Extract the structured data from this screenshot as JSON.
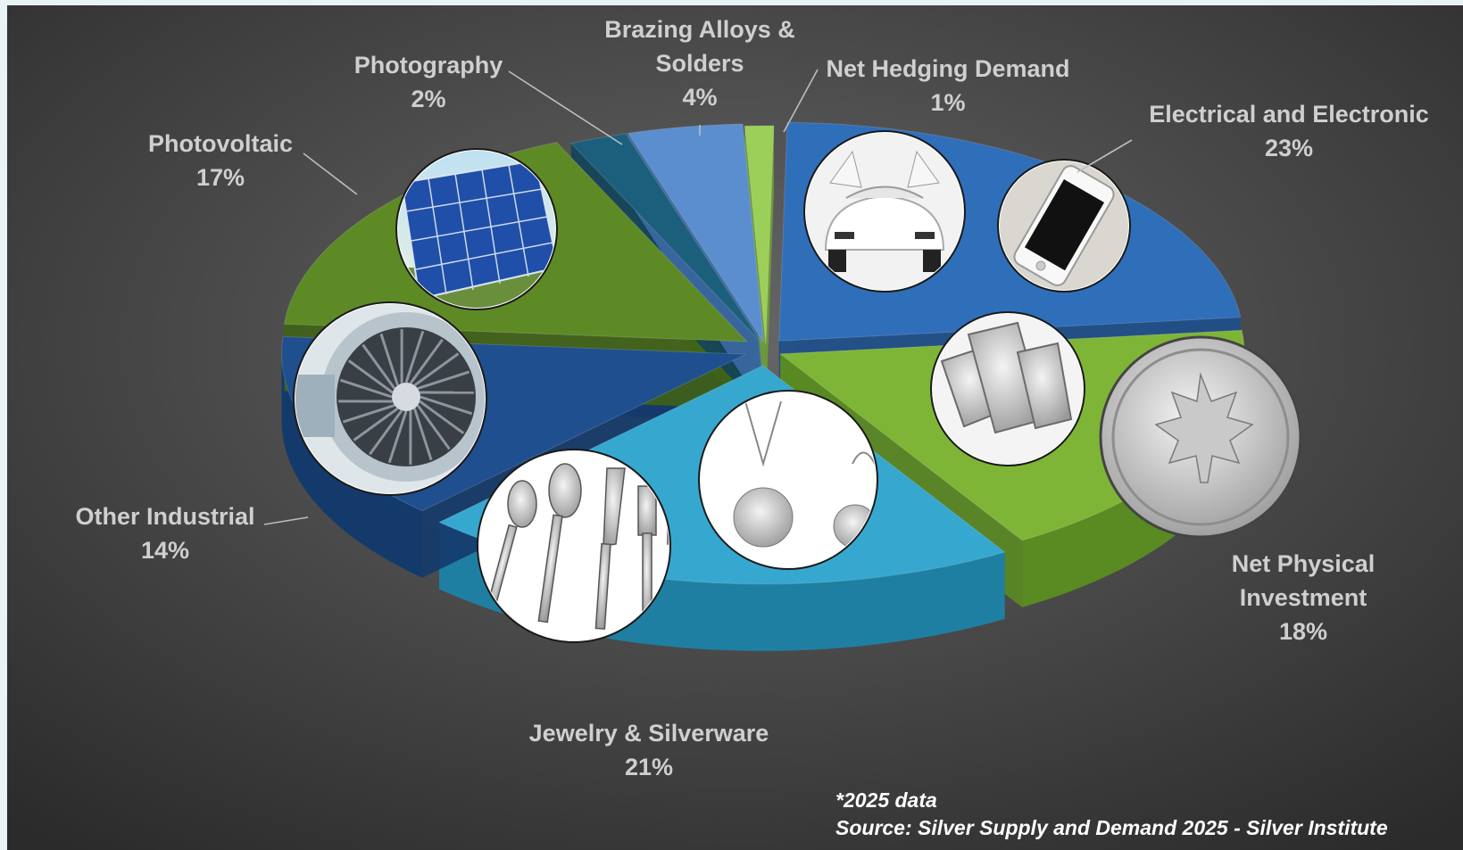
{
  "chart_data": {
    "type": "pie",
    "title": "",
    "slices": [
      {
        "label_lines": [
          "Electrical and Electronic"
        ],
        "pct_label": "23%",
        "value": 23,
        "color": "#2f6fba",
        "side": "#1d4f8c",
        "icon": "smartphone-and-car-photo"
      },
      {
        "label_lines": [
          "Net Physical",
          "Investment"
        ],
        "pct_label": "18%",
        "value": 18,
        "color": "#7fb537",
        "side": "#5a8a22",
        "icon": "silver-bars-and-coin-photo"
      },
      {
        "label_lines": [
          "Jewelry & Silverware"
        ],
        "pct_label": "21%",
        "value": 21,
        "color": "#36a8cf",
        "side": "#1f7fa2",
        "icon": "jewelry-and-cutlery-photo"
      },
      {
        "label_lines": [
          "Other Industrial"
        ],
        "pct_label": "14%",
        "value": 14,
        "color": "#1f4f8e",
        "side": "#143a6c",
        "icon": "jet-engine-photo"
      },
      {
        "label_lines": [
          "Photovoltaic"
        ],
        "pct_label": "17%",
        "value": 17,
        "color": "#5e8a25",
        "side": "#3f6317",
        "icon": "solar-panel-photo"
      },
      {
        "label_lines": [
          "Photography"
        ],
        "pct_label": "2%",
        "value": 2,
        "color": "#1c5f7c",
        "side": "#124459",
        "icon": ""
      },
      {
        "label_lines": [
          "Brazing Alloys &",
          "Solders"
        ],
        "pct_label": "4%",
        "value": 4,
        "color": "#5a8ecf",
        "side": "#3d6aa3",
        "icon": ""
      },
      {
        "label_lines": [
          "Net Hedging Demand"
        ],
        "pct_label": "1%",
        "value": 1,
        "color": "#9bcf5a",
        "side": "#6f9d35",
        "icon": ""
      }
    ],
    "notes": [
      "*2025 data",
      "Source: Silver Supply and Demand 2025 - Silver Institute"
    ],
    "legend": "none"
  }
}
